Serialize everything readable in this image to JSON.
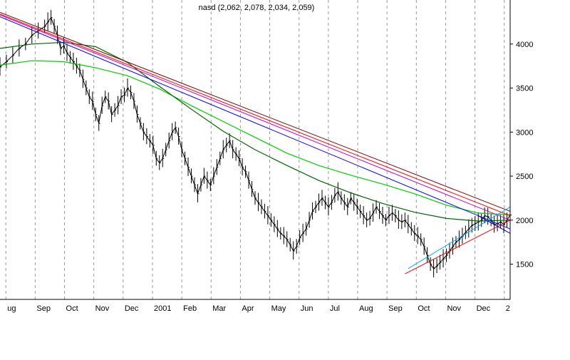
{
  "chart_data": {
    "type": "line",
    "title": "nasd (2,062, 2,078, 2,034, 2,059)",
    "ylim": [
      1100,
      4500
    ],
    "y_ticks": [
      1500,
      2000,
      2500,
      3000,
      3500,
      4000
    ],
    "x_ticks": [
      "ug",
      "Sep",
      "Oct",
      "Nov",
      "Dec",
      "2001",
      "Feb",
      "Mar",
      "Apr",
      "May",
      "Jun",
      "Jul",
      "Aug",
      "Sep",
      "Oct",
      "Nov",
      "Dec",
      "2"
    ],
    "grid": "vertical dashed",
    "series": [
      {
        "values": [
          [
            0,
            3740
          ],
          [
            2,
            3800
          ],
          [
            4,
            3870
          ],
          [
            6,
            3950
          ],
          [
            8,
            4000
          ],
          [
            10,
            4100
          ],
          [
            12,
            4150
          ],
          [
            14,
            4200
          ],
          [
            15,
            4250
          ],
          [
            16,
            4300
          ],
          [
            17,
            4200
          ],
          [
            18,
            4100
          ],
          [
            19,
            3950
          ],
          [
            20,
            3980
          ],
          [
            21,
            3900
          ],
          [
            22,
            3850
          ],
          [
            23,
            3800
          ],
          [
            24,
            3750
          ],
          [
            25,
            3700
          ],
          [
            26,
            3600
          ],
          [
            27,
            3500
          ],
          [
            28,
            3400
          ],
          [
            29,
            3350
          ],
          [
            30,
            3200
          ],
          [
            31,
            3100
          ],
          [
            32,
            3300
          ],
          [
            33,
            3400
          ],
          [
            34,
            3350
          ],
          [
            35,
            3200
          ],
          [
            36,
            3250
          ],
          [
            37,
            3300
          ],
          [
            38,
            3400
          ],
          [
            39,
            3420
          ],
          [
            40,
            3500
          ],
          [
            41,
            3450
          ],
          [
            42,
            3350
          ],
          [
            43,
            3200
          ],
          [
            44,
            3100
          ],
          [
            45,
            3000
          ],
          [
            46,
            2950
          ],
          [
            47,
            2900
          ],
          [
            48,
            2850
          ],
          [
            49,
            2700
          ],
          [
            50,
            2650
          ],
          [
            51,
            2700
          ],
          [
            52,
            2800
          ],
          [
            53,
            2900
          ],
          [
            54,
            3000
          ],
          [
            55,
            3050
          ],
          [
            56,
            2950
          ],
          [
            57,
            2800
          ],
          [
            58,
            2700
          ],
          [
            59,
            2600
          ],
          [
            60,
            2500
          ],
          [
            61,
            2400
          ],
          [
            62,
            2300
          ],
          [
            63,
            2400
          ],
          [
            64,
            2500
          ],
          [
            65,
            2450
          ],
          [
            66,
            2400
          ],
          [
            67,
            2500
          ],
          [
            68,
            2600
          ],
          [
            69,
            2700
          ],
          [
            70,
            2800
          ],
          [
            71,
            2850
          ],
          [
            72,
            2900
          ],
          [
            73,
            2800
          ],
          [
            74,
            2750
          ],
          [
            75,
            2700
          ],
          [
            76,
            2600
          ],
          [
            77,
            2550
          ],
          [
            78,
            2450
          ],
          [
            79,
            2350
          ],
          [
            80,
            2250
          ],
          [
            81,
            2200
          ],
          [
            82,
            2150
          ],
          [
            83,
            2100
          ],
          [
            84,
            2050
          ],
          [
            85,
            2000
          ],
          [
            86,
            1950
          ],
          [
            87,
            1900
          ],
          [
            88,
            1850
          ],
          [
            89,
            1820
          ],
          [
            90,
            1780
          ],
          [
            91,
            1720
          ],
          [
            92,
            1650
          ],
          [
            93,
            1700
          ],
          [
            94,
            1800
          ],
          [
            95,
            1850
          ],
          [
            96,
            1900
          ],
          [
            97,
            2000
          ],
          [
            98,
            2100
          ],
          [
            99,
            2150
          ],
          [
            100,
            2200
          ],
          [
            101,
            2250
          ],
          [
            102,
            2200
          ],
          [
            103,
            2150
          ],
          [
            104,
            2200
          ],
          [
            105,
            2280
          ],
          [
            106,
            2320
          ],
          [
            107,
            2250
          ],
          [
            108,
            2200
          ],
          [
            109,
            2150
          ],
          [
            110,
            2250
          ],
          [
            111,
            2200
          ],
          [
            112,
            2150
          ],
          [
            113,
            2100
          ],
          [
            114,
            2050
          ],
          [
            115,
            2000
          ],
          [
            116,
            2020
          ],
          [
            117,
            2080
          ],
          [
            118,
            2150
          ],
          [
            119,
            2100
          ],
          [
            120,
            2050
          ],
          [
            121,
            2000
          ],
          [
            122,
            2050
          ],
          [
            123,
            2080
          ],
          [
            124,
            2050
          ],
          [
            125,
            2000
          ],
          [
            126,
            1980
          ],
          [
            127,
            2000
          ],
          [
            128,
            1950
          ],
          [
            129,
            1900
          ],
          [
            130,
            1850
          ],
          [
            131,
            1820
          ],
          [
            132,
            1780
          ],
          [
            133,
            1700
          ],
          [
            134,
            1600
          ],
          [
            135,
            1500
          ],
          [
            136,
            1450
          ],
          [
            137,
            1480
          ],
          [
            138,
            1520
          ],
          [
            139,
            1560
          ],
          [
            140,
            1600
          ],
          [
            141,
            1650
          ],
          [
            142,
            1700
          ],
          [
            143,
            1750
          ],
          [
            144,
            1780
          ],
          [
            145,
            1820
          ],
          [
            146,
            1860
          ],
          [
            147,
            1900
          ],
          [
            148,
            1940
          ],
          [
            149,
            1960
          ],
          [
            150,
            1980
          ],
          [
            151,
            2000
          ],
          [
            152,
            2050
          ],
          [
            153,
            2040
          ],
          [
            154,
            2000
          ],
          [
            155,
            1950
          ],
          [
            156,
            1960
          ],
          [
            157,
            1980
          ],
          [
            158,
            1950
          ],
          [
            159,
            2000
          ],
          [
            160,
            2059
          ]
        ]
      },
      {
        "values": [
          [
            0,
            3760
          ],
          [
            10,
            3810
          ],
          [
            20,
            3800
          ],
          [
            30,
            3730
          ],
          [
            40,
            3640
          ],
          [
            50,
            3490
          ],
          [
            60,
            3300
          ],
          [
            70,
            3120
          ],
          [
            80,
            2940
          ],
          [
            90,
            2760
          ],
          [
            100,
            2620
          ],
          [
            110,
            2510
          ],
          [
            120,
            2410
          ],
          [
            130,
            2300
          ],
          [
            140,
            2170
          ],
          [
            150,
            2080
          ],
          [
            160,
            2060
          ]
        ]
      },
      {
        "values": [
          [
            0,
            3950
          ],
          [
            10,
            4000
          ],
          [
            20,
            4020
          ],
          [
            30,
            3970
          ],
          [
            40,
            3790
          ],
          [
            50,
            3520
          ],
          [
            60,
            3260
          ],
          [
            70,
            3010
          ],
          [
            80,
            2800
          ],
          [
            90,
            2620
          ],
          [
            100,
            2450
          ],
          [
            110,
            2310
          ],
          [
            120,
            2190
          ],
          [
            130,
            2090
          ],
          [
            140,
            2020
          ],
          [
            150,
            1990
          ],
          [
            160,
            2000
          ]
        ]
      }
    ],
    "trendlines": [
      {
        "color": "#ff0000",
        "values": [
          [
            0,
            4340
          ],
          [
            160,
            2050
          ]
        ]
      },
      {
        "color": "#cc00cc",
        "values": [
          [
            0,
            4330
          ],
          [
            160,
            2000
          ]
        ]
      },
      {
        "color": "#0000ff",
        "values": [
          [
            0,
            4310
          ],
          [
            160,
            1900
          ]
        ]
      },
      {
        "color": "#800000",
        "values": [
          [
            0,
            4360
          ],
          [
            160,
            2100
          ]
        ]
      },
      {
        "color": "#ff0000",
        "values": [
          [
            127,
            1390
          ],
          [
            160,
            2000
          ]
        ]
      },
      {
        "color": "#00aaff",
        "values": [
          [
            128,
            1450
          ],
          [
            160,
            2150
          ]
        ]
      },
      {
        "color": "#0000aa",
        "values": [
          [
            150,
            2050
          ],
          [
            160,
            1850
          ]
        ]
      }
    ],
    "colors": {
      "price": "#000000",
      "avg_fast": "#00cc00",
      "avg_slow": "#006600",
      "grid": "#999999"
    }
  }
}
